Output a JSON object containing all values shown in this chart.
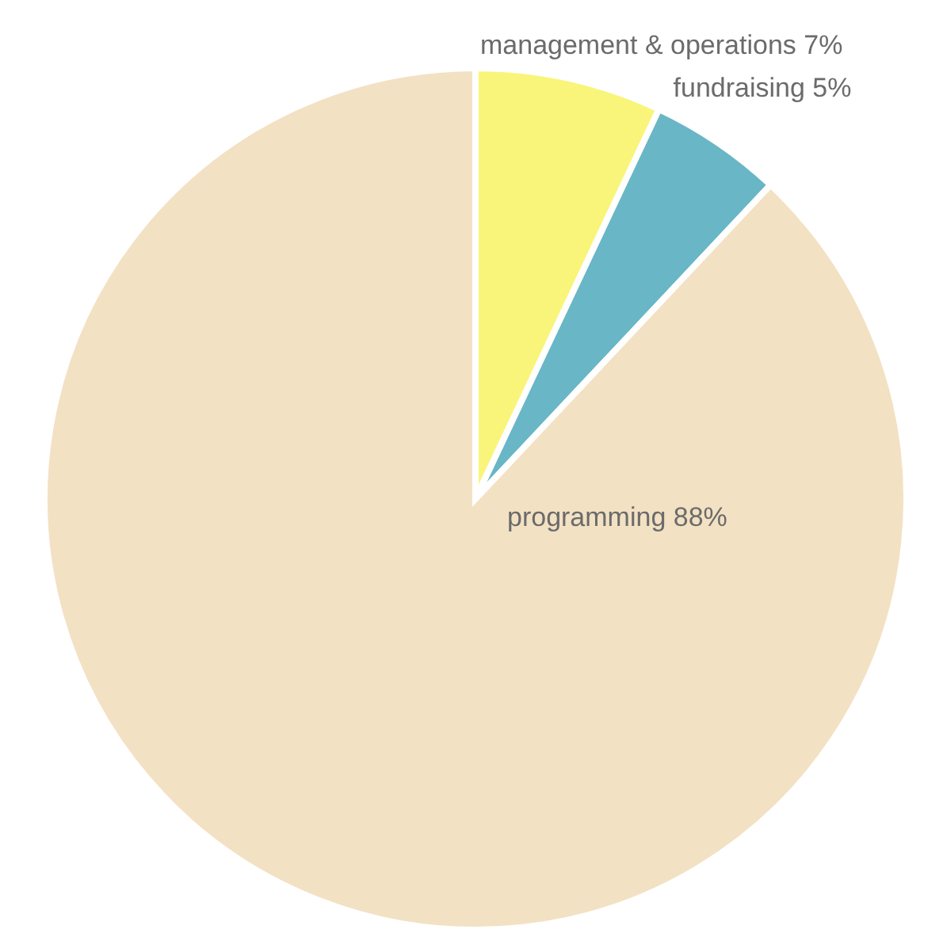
{
  "chart_data": {
    "type": "pie",
    "categories": [
      "management & operations",
      "fundraising",
      "programming"
    ],
    "values": [
      7,
      5,
      88
    ],
    "colors": [
      "#f9f57a",
      "#68b6c6",
      "#f3e1c3"
    ],
    "value_labels": [
      "7%",
      "5%",
      "88%"
    ]
  }
}
